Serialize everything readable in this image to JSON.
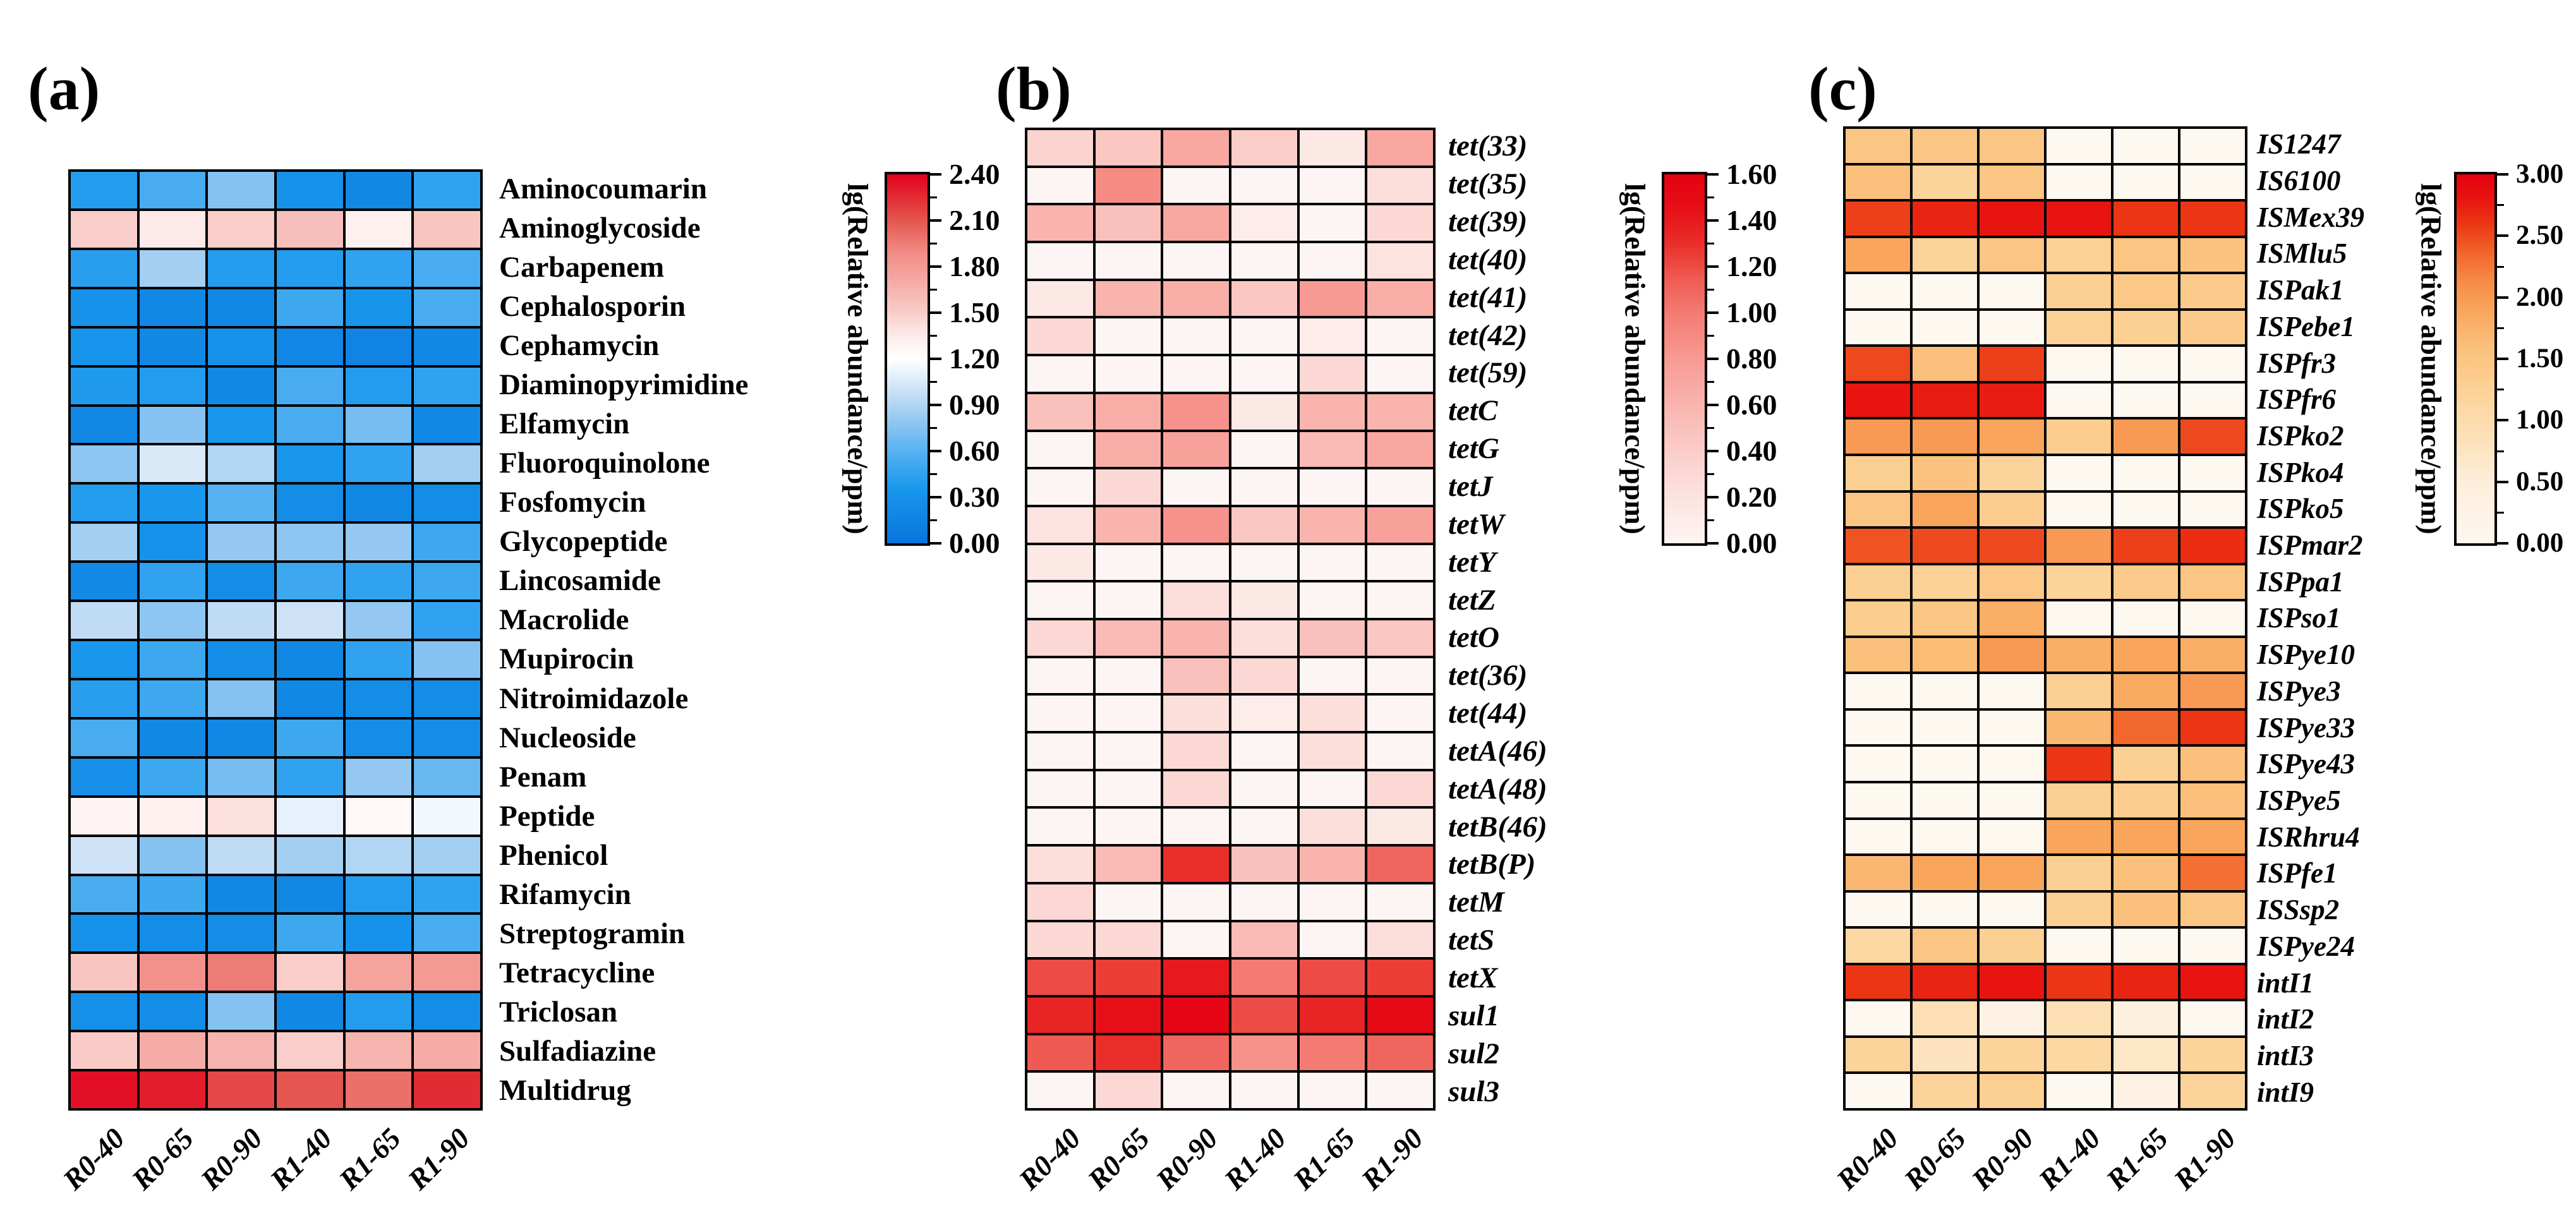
{
  "figure_caption": "",
  "chart_data": [
    {
      "type": "heatmap",
      "panel_letter": "(a)",
      "x_categories": [
        "R0-40",
        "R0-65",
        "R0-90",
        "R1-40",
        "R1-65",
        "R1-90"
      ],
      "y_categories": [
        "Aminocoumarin",
        "Aminoglycoside",
        "Carbapenem",
        "Cephalosporin",
        "Cephamycin",
        "Diaminopyrimidine",
        "Elfamycin",
        "Fluoroquinolone",
        "Fosfomycin",
        "Glycopeptide",
        "Lincosamide",
        "Macrolide",
        "Mupirocin",
        "Nitroimidazole",
        "Nucleoside",
        "Penam",
        "Peptide",
        "Phenicol",
        "Rifamycin",
        "Streptogramin",
        "Tetracycline",
        "Triclosan",
        "Sulfadiazine",
        "Multidrug"
      ],
      "values": [
        [
          0.4,
          0.55,
          0.75,
          0.3,
          0.2,
          0.45
        ],
        [
          1.5,
          1.35,
          1.5,
          1.58,
          1.3,
          1.55
        ],
        [
          0.42,
          0.85,
          0.4,
          0.4,
          0.45,
          0.55
        ],
        [
          0.3,
          0.2,
          0.2,
          0.5,
          0.33,
          0.55
        ],
        [
          0.32,
          0.2,
          0.3,
          0.18,
          0.15,
          0.2
        ],
        [
          0.38,
          0.4,
          0.2,
          0.55,
          0.4,
          0.45
        ],
        [
          0.2,
          0.75,
          0.35,
          0.55,
          0.7,
          0.2
        ],
        [
          0.78,
          1.05,
          0.9,
          0.35,
          0.45,
          0.85
        ],
        [
          0.4,
          0.35,
          0.6,
          0.25,
          0.2,
          0.25
        ],
        [
          0.85,
          0.3,
          0.8,
          0.78,
          0.8,
          0.5
        ],
        [
          0.22,
          0.45,
          0.25,
          0.5,
          0.45,
          0.5
        ],
        [
          0.95,
          0.78,
          0.95,
          1.0,
          0.8,
          0.45
        ],
        [
          0.35,
          0.5,
          0.25,
          0.2,
          0.45,
          0.75
        ],
        [
          0.42,
          0.5,
          0.75,
          0.2,
          0.25,
          0.25
        ],
        [
          0.55,
          0.2,
          0.2,
          0.5,
          0.25,
          0.25
        ],
        [
          0.27,
          0.5,
          0.7,
          0.45,
          0.8,
          0.65
        ],
        [
          1.28,
          1.3,
          1.4,
          1.1,
          1.25,
          1.15
        ],
        [
          1.0,
          0.75,
          0.95,
          0.85,
          0.9,
          0.85
        ],
        [
          0.55,
          0.5,
          0.2,
          0.2,
          0.4,
          0.45
        ],
        [
          0.3,
          0.25,
          0.25,
          0.5,
          0.3,
          0.55
        ],
        [
          1.55,
          1.85,
          1.95,
          1.5,
          1.75,
          1.8
        ],
        [
          0.28,
          0.25,
          0.75,
          0.2,
          0.4,
          0.25
        ],
        [
          1.52,
          1.7,
          1.65,
          1.5,
          1.65,
          1.7
        ],
        [
          2.35,
          2.3,
          2.15,
          2.1,
          2.0,
          2.25
        ]
      ],
      "colorbar_label": "lg(Relative abundance/ppm)",
      "colorbar_ticks": [
        "2.40",
        "2.10",
        "1.80",
        "1.50",
        "1.20",
        "0.90",
        "0.60",
        "0.30",
        "0.00"
      ],
      "vmin": 0.0,
      "vmax": 2.4,
      "colormap_stops": [
        [
          0.0,
          "#0a74dc"
        ],
        [
          0.35,
          "#1897ec"
        ],
        [
          0.55,
          "#49acf1"
        ],
        [
          0.75,
          "#85c2f1"
        ],
        [
          0.95,
          "#c0dbf4"
        ],
        [
          1.2,
          "#ffffff"
        ],
        [
          1.35,
          "#fdeae8"
        ],
        [
          1.5,
          "#f9cdc9"
        ],
        [
          1.7,
          "#f5aba6"
        ],
        [
          1.9,
          "#f18983"
        ],
        [
          2.1,
          "#e4564f"
        ],
        [
          2.25,
          "#e22c33"
        ],
        [
          2.4,
          "#e2001f"
        ]
      ],
      "row_label_italic": false
    },
    {
      "type": "heatmap",
      "panel_letter": "(b)",
      "x_categories": [
        "R0-40",
        "R0-65",
        "R0-90",
        "R1-40",
        "R1-65",
        "R1-90"
      ],
      "y_categories": [
        "tet(33)",
        "tet(35)",
        "tet(39)",
        "tet(40)",
        "tet(41)",
        "tet(42)",
        "tet(59)",
        "tetC",
        "tetG",
        "tetJ",
        "tetW",
        "tetY",
        "tetZ",
        "tetO",
        "tet(36)",
        "tet(44)",
        "tetA(46)",
        "tetA(48)",
        "tetB(46)",
        "tetB(P)",
        "tetM",
        "tetS",
        "tetX",
        "sul1",
        "sul2",
        "sul3"
      ],
      "values": [
        [
          0.35,
          0.45,
          0.7,
          0.4,
          0.15,
          0.7
        ],
        [
          0.0,
          0.9,
          0.0,
          0.0,
          0.0,
          0.25
        ],
        [
          0.6,
          0.5,
          0.7,
          0.1,
          0.0,
          0.3
        ],
        [
          0.0,
          0.0,
          0.0,
          0.0,
          0.0,
          0.2
        ],
        [
          0.15,
          0.6,
          0.65,
          0.45,
          0.8,
          0.65
        ],
        [
          0.3,
          0.0,
          0.0,
          0.0,
          0.1,
          0.0
        ],
        [
          0.0,
          0.0,
          0.0,
          0.0,
          0.3,
          0.0
        ],
        [
          0.5,
          0.65,
          0.85,
          0.15,
          0.6,
          0.6
        ],
        [
          0.0,
          0.65,
          0.75,
          0.0,
          0.55,
          0.7
        ],
        [
          0.0,
          0.3,
          0.0,
          0.0,
          0.0,
          0.0
        ],
        [
          0.2,
          0.6,
          0.85,
          0.45,
          0.6,
          0.75
        ],
        [
          0.15,
          0.0,
          0.0,
          0.0,
          0.0,
          0.0
        ],
        [
          0.0,
          0.0,
          0.25,
          0.15,
          0.0,
          0.0
        ],
        [
          0.3,
          0.55,
          0.6,
          0.25,
          0.5,
          0.45
        ],
        [
          0.0,
          0.0,
          0.5,
          0.3,
          0.0,
          0.0
        ],
        [
          0.0,
          0.0,
          0.25,
          0.1,
          0.25,
          0.0
        ],
        [
          0.0,
          0.0,
          0.3,
          0.0,
          0.25,
          0.0
        ],
        [
          0.0,
          0.0,
          0.3,
          0.0,
          0.0,
          0.3
        ],
        [
          0.0,
          0.0,
          0.0,
          0.0,
          0.25,
          0.15
        ],
        [
          0.25,
          0.55,
          1.3,
          0.5,
          0.6,
          1.1
        ],
        [
          0.3,
          0.0,
          0.0,
          0.0,
          0.0,
          0.0
        ],
        [
          0.3,
          0.3,
          0.0,
          0.55,
          0.0,
          0.25
        ],
        [
          1.2,
          1.25,
          1.4,
          1.0,
          1.2,
          1.25
        ],
        [
          1.35,
          1.45,
          1.55,
          1.2,
          1.35,
          1.5
        ],
        [
          1.15,
          1.3,
          1.1,
          0.85,
          1.0,
          1.1
        ],
        [
          0.0,
          0.3,
          0.0,
          0.0,
          0.0,
          0.0
        ]
      ],
      "colorbar_label": "lg(Relative abundance/ppm)",
      "colorbar_ticks": [
        "1.60",
        "1.40",
        "1.20",
        "1.00",
        "0.80",
        "0.60",
        "0.40",
        "0.20",
        "0.00"
      ],
      "vmin": 0.0,
      "vmax": 1.6,
      "colormap_stops": [
        [
          0.0,
          "#fdf5f3"
        ],
        [
          0.2,
          "#fce3e0"
        ],
        [
          0.4,
          "#fbcdc9"
        ],
        [
          0.6,
          "#f9b4ae"
        ],
        [
          0.8,
          "#f79a93"
        ],
        [
          1.0,
          "#f37b72"
        ],
        [
          1.15,
          "#ef5a52"
        ],
        [
          1.3,
          "#ea2e2a"
        ],
        [
          1.45,
          "#e60f18"
        ],
        [
          1.6,
          "#e50012"
        ]
      ],
      "row_label_italic": true
    },
    {
      "type": "heatmap",
      "panel_letter": "(c)",
      "x_categories": [
        "R0-40",
        "R0-65",
        "R0-90",
        "R1-40",
        "R1-65",
        "R1-90"
      ],
      "y_categories": [
        "IS1247",
        "IS6100",
        "ISMex39",
        "ISMlu5",
        "ISPak1",
        "ISPebe1",
        "ISPfr3",
        "ISPfr6",
        "ISPko2",
        "ISPko4",
        "ISPko5",
        "ISPmar2",
        "ISPpa1",
        "ISPso1",
        "ISPye10",
        "ISPye3",
        "ISPye33",
        "ISPye43",
        "ISPye5",
        "ISRhru4",
        "ISPfe1",
        "ISSsp2",
        "ISPye24",
        "intI1",
        "intI2",
        "intI3",
        "intI9"
      ],
      "values": [
        [
          1.5,
          1.5,
          1.5,
          0.0,
          0.0,
          0.0
        ],
        [
          1.6,
          1.2,
          1.5,
          0.0,
          0.0,
          0.0
        ],
        [
          2.55,
          2.7,
          2.8,
          2.8,
          2.6,
          2.6
        ],
        [
          1.9,
          1.2,
          1.5,
          1.25,
          1.5,
          1.55
        ],
        [
          0.0,
          0.0,
          0.0,
          1.3,
          1.45,
          1.4
        ],
        [
          0.0,
          0.0,
          0.0,
          1.25,
          1.3,
          1.4
        ],
        [
          2.5,
          1.6,
          2.55,
          0.0,
          0.0,
          0.0
        ],
        [
          2.8,
          2.75,
          2.75,
          0.0,
          0.0,
          0.0
        ],
        [
          2.0,
          2.0,
          1.9,
          1.35,
          2.0,
          2.5
        ],
        [
          1.3,
          1.55,
          1.2,
          0.0,
          0.0,
          0.0
        ],
        [
          1.5,
          1.9,
          1.35,
          0.0,
          0.0,
          0.0
        ],
        [
          2.45,
          2.5,
          2.5,
          2.0,
          2.55,
          2.65
        ],
        [
          1.3,
          1.25,
          1.45,
          1.2,
          1.4,
          1.5
        ],
        [
          1.35,
          1.5,
          1.8,
          0.0,
          0.0,
          0.0
        ],
        [
          1.6,
          1.65,
          2.0,
          1.8,
          1.9,
          1.8
        ],
        [
          0.0,
          0.0,
          0.0,
          1.3,
          1.85,
          2.0
        ],
        [
          0.0,
          0.0,
          0.0,
          1.7,
          2.35,
          2.6
        ],
        [
          0.0,
          0.0,
          0.0,
          2.6,
          1.3,
          1.6
        ],
        [
          0.0,
          0.0,
          0.0,
          1.3,
          1.35,
          1.6
        ],
        [
          0.0,
          0.0,
          0.0,
          1.9,
          1.9,
          1.9
        ],
        [
          1.7,
          1.9,
          1.9,
          1.3,
          1.6,
          2.3
        ],
        [
          0.0,
          0.0,
          0.0,
          1.3,
          1.6,
          1.5
        ],
        [
          1.1,
          1.5,
          1.3,
          0.0,
          0.0,
          0.0
        ],
        [
          2.6,
          2.7,
          2.8,
          2.6,
          2.7,
          2.8
        ],
        [
          0.0,
          0.9,
          0.3,
          0.9,
          0.4,
          0.0
        ],
        [
          1.2,
          0.8,
          1.2,
          1.1,
          0.7,
          1.2
        ],
        [
          0.0,
          1.2,
          1.3,
          0.0,
          0.3,
          1.2
        ]
      ],
      "colorbar_label": "lg(Relative abundance/ppm)",
      "colorbar_ticks": [
        "3.00",
        "2.50",
        "2.00",
        "1.50",
        "1.00",
        "0.50",
        "0.00"
      ],
      "vmin": 0.0,
      "vmax": 3.0,
      "colormap_stops": [
        [
          0.0,
          "#fdf8f0"
        ],
        [
          0.5,
          "#fdeeda"
        ],
        [
          1.0,
          "#fcdcab"
        ],
        [
          1.3,
          "#fccf92"
        ],
        [
          1.6,
          "#fbc07b"
        ],
        [
          1.9,
          "#f9a55c"
        ],
        [
          2.1,
          "#f78f49"
        ],
        [
          2.35,
          "#f2672c"
        ],
        [
          2.6,
          "#ec3514"
        ],
        [
          2.8,
          "#e81410"
        ],
        [
          3.0,
          "#e50010"
        ]
      ],
      "row_label_italic": true
    }
  ]
}
